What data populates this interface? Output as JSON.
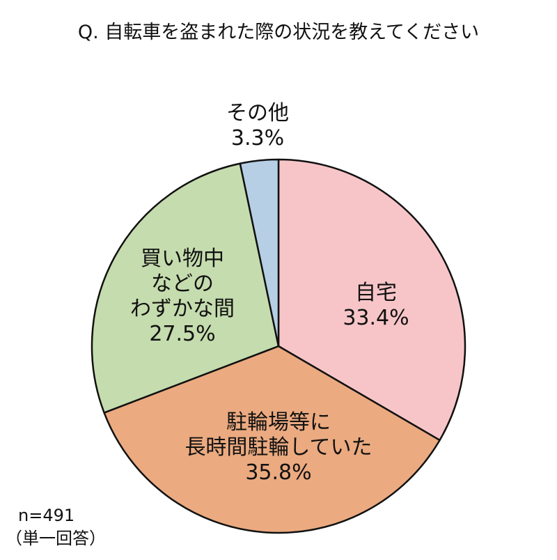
{
  "title": "Q. 自転車を盗まれた際の状況を教えてください",
  "note": {
    "sample": "n=491",
    "answer_type": "（単一回答）"
  },
  "chart_data": {
    "type": "pie",
    "title": "Q. 自転車を盗まれた際の状況を教えてください",
    "start": "12 o'clock",
    "direction": "clockwise",
    "slices": [
      {
        "label": [
          "自宅"
        ],
        "percent_text": "33.4%",
        "value": 33.4,
        "color": "#f7c5c8"
      },
      {
        "label": [
          "駐輪場等に",
          "長時間駐輪していた"
        ],
        "percent_text": "35.8%",
        "value": 35.8,
        "color": "#ebaa80"
      },
      {
        "label": [
          "買い物中",
          "などの",
          "わずかな間"
        ],
        "percent_text": "27.5%",
        "value": 27.5,
        "color": "#c5dcae"
      },
      {
        "label": [
          "その他"
        ],
        "percent_text": "3.3%",
        "value": 3.3,
        "color": "#b6cfe5"
      }
    ]
  }
}
